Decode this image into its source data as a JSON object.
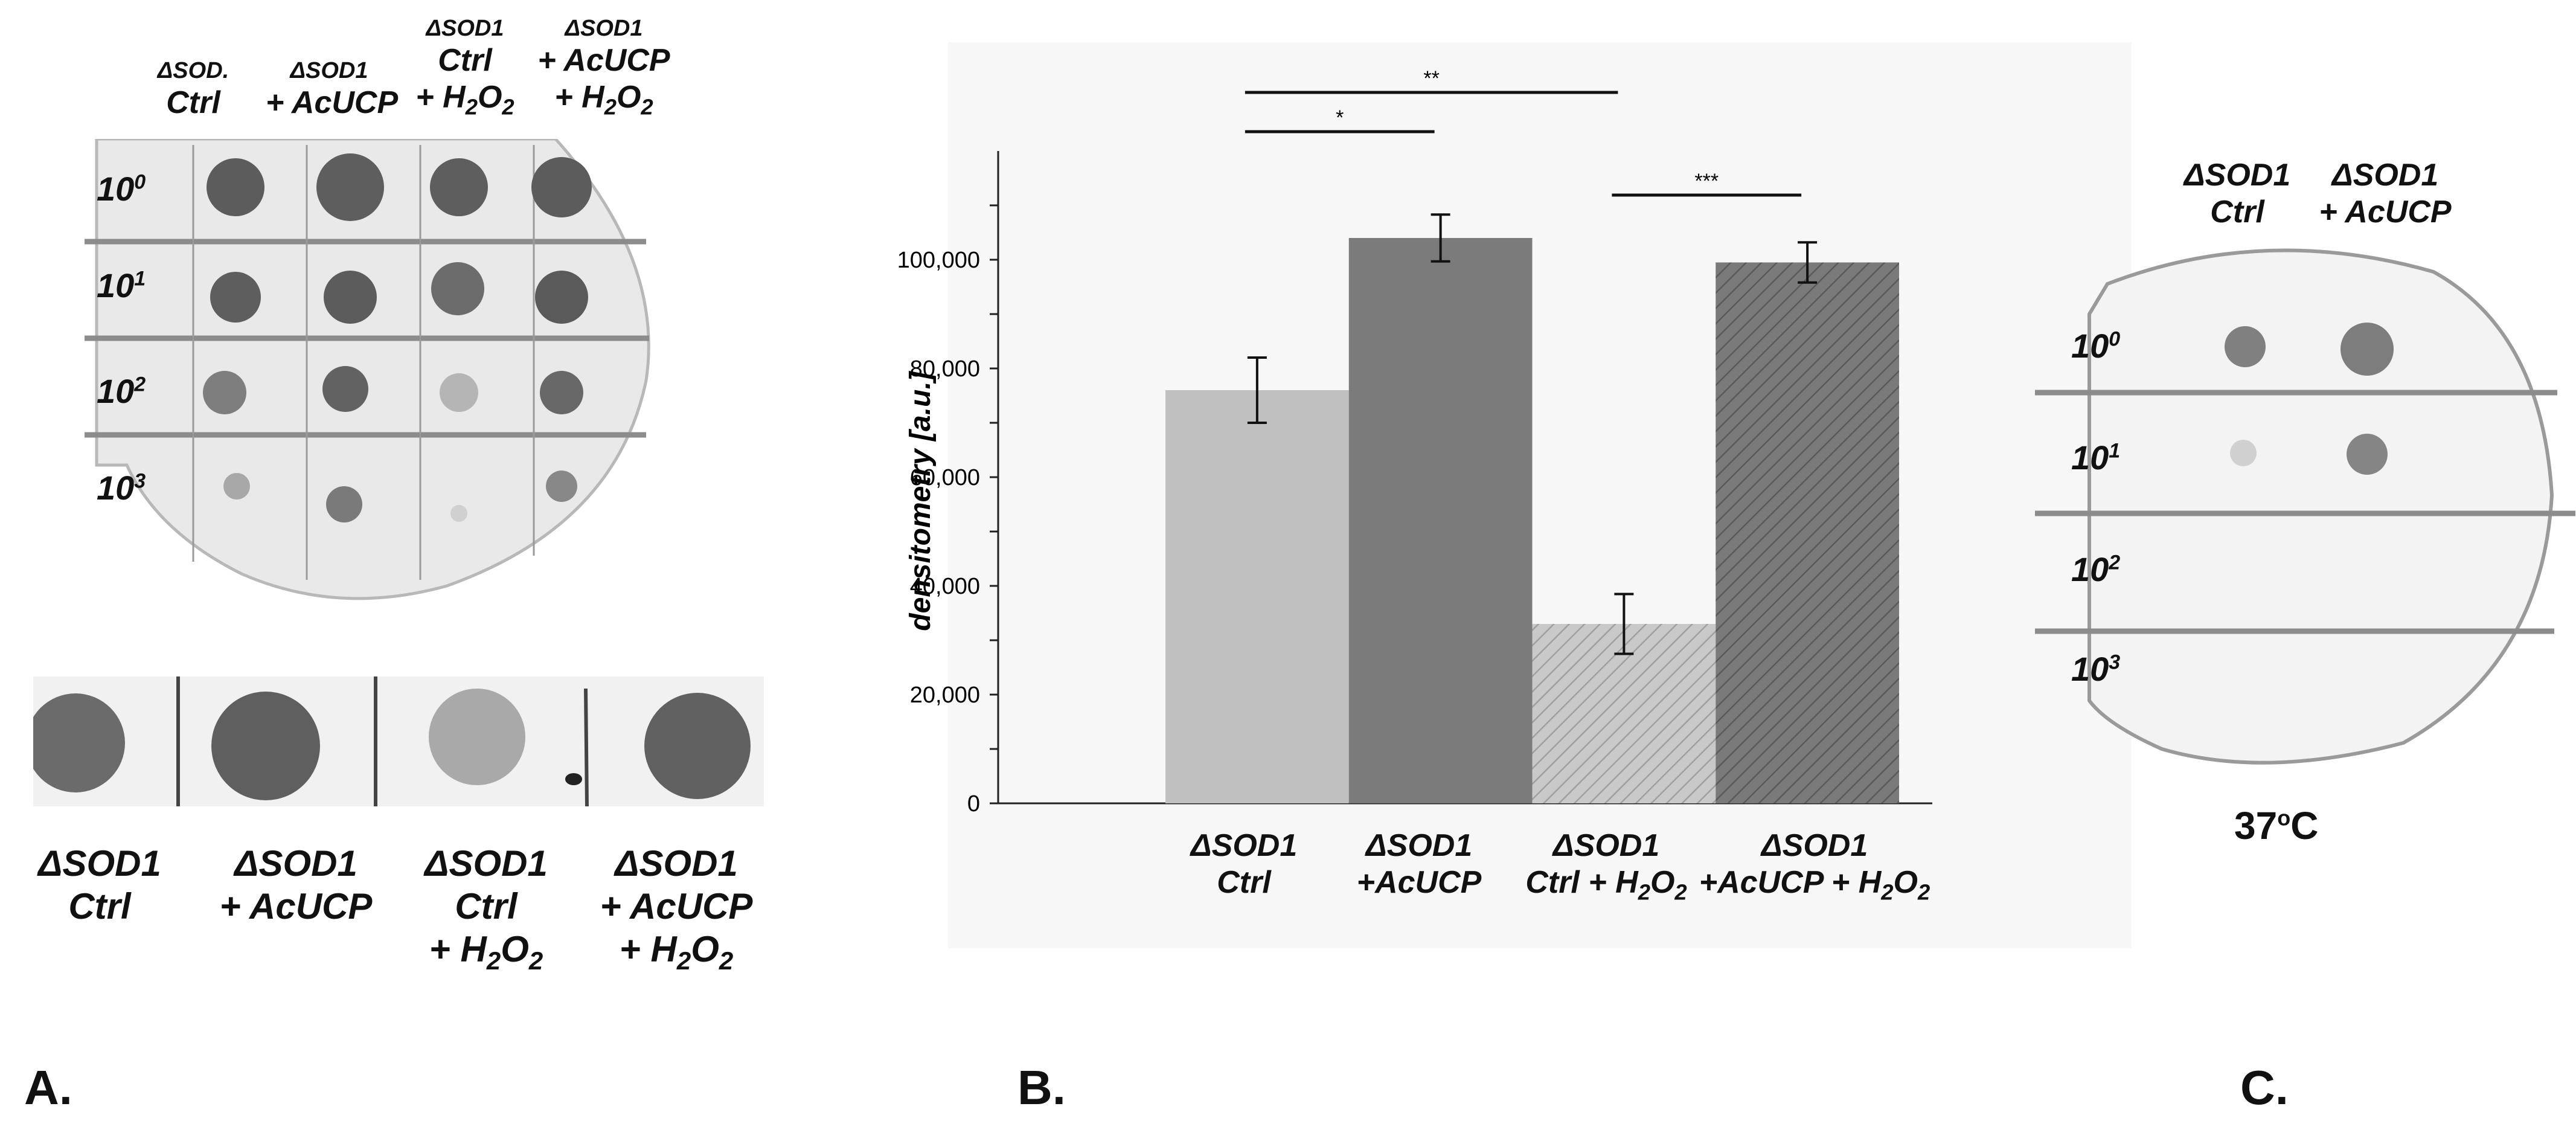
{
  "panel_a": {
    "letter": "A.",
    "column_headers": [
      {
        "line1": "ΔSOD.",
        "line2": "Ctrl",
        "line3": ""
      },
      {
        "line1": "ΔSOD1",
        "line2": "+ AcUCP",
        "line3": ""
      },
      {
        "line1": "ΔSOD1",
        "line2": "Ctrl",
        "line3": "+ H2O2"
      },
      {
        "line1": "ΔSOD1",
        "line2": "+ AcUCP",
        "line3": "+ H2O2"
      }
    ],
    "dilutions": [
      "10",
      "10",
      "10",
      "10"
    ],
    "dilution_exponents": [
      "0",
      "1",
      "2",
      "3"
    ],
    "zoom_labels": [
      {
        "line1": "ΔSOD1",
        "line2": "Ctrl",
        "line3": ""
      },
      {
        "line1": "ΔSOD1",
        "line2": "+ AcUCP",
        "line3": ""
      },
      {
        "line1": "ΔSOD1",
        "line2": "Ctrl",
        "line3": "+ H2O2"
      },
      {
        "line1": "ΔSOD1",
        "line2": "+ AcUCP",
        "line3": "+ H2O2"
      }
    ]
  },
  "panel_b": {
    "letter": "B."
  },
  "panel_c": {
    "letter": "C.",
    "column_headers": [
      {
        "line1": "ΔSOD1",
        "line2": "Ctrl"
      },
      {
        "line1": "ΔSOD1",
        "line2": "+ AcUCP"
      }
    ],
    "dilutions": [
      "10",
      "10",
      "10",
      "10"
    ],
    "dilution_exponents": [
      "0",
      "1",
      "2",
      "3"
    ],
    "temperature": "37",
    "temperature_sup": "o",
    "temperature_unit": "C"
  },
  "chart_data": {
    "type": "bar",
    "title": "",
    "xlabel": "",
    "ylabel": "densitometry [a.u.]",
    "ylim": [
      0,
      120000
    ],
    "yticks": [
      0,
      20000,
      40000,
      60000,
      80000,
      100000
    ],
    "ytick_labels": [
      "0",
      "20,000",
      "40,000",
      "60,000",
      "80,000",
      "100,000"
    ],
    "categories": [
      {
        "line1": "ΔSOD1",
        "line2": "Ctrl"
      },
      {
        "line1": "ΔSOD1",
        "line2": "+AcUCP"
      },
      {
        "line1": "ΔSOD1",
        "line2": "Ctrl + H2O2"
      },
      {
        "line1": "ΔSOD1",
        "line2": "+AcUCP + H2O2"
      }
    ],
    "values": [
      76000,
      104000,
      33000,
      99500
    ],
    "errors": [
      6000,
      4300,
      5500,
      3700
    ],
    "colors": [
      "#c0c0c0",
      "#7b7b7b",
      "#c9c9c9",
      "#787878"
    ],
    "hatched": [
      false,
      false,
      true,
      true
    ],
    "significance": [
      {
        "from": 0,
        "to": 2,
        "label": "**"
      },
      {
        "from": 0,
        "to": 1,
        "label": "*"
      },
      {
        "from": 2,
        "to": 3,
        "label": "***"
      }
    ]
  }
}
